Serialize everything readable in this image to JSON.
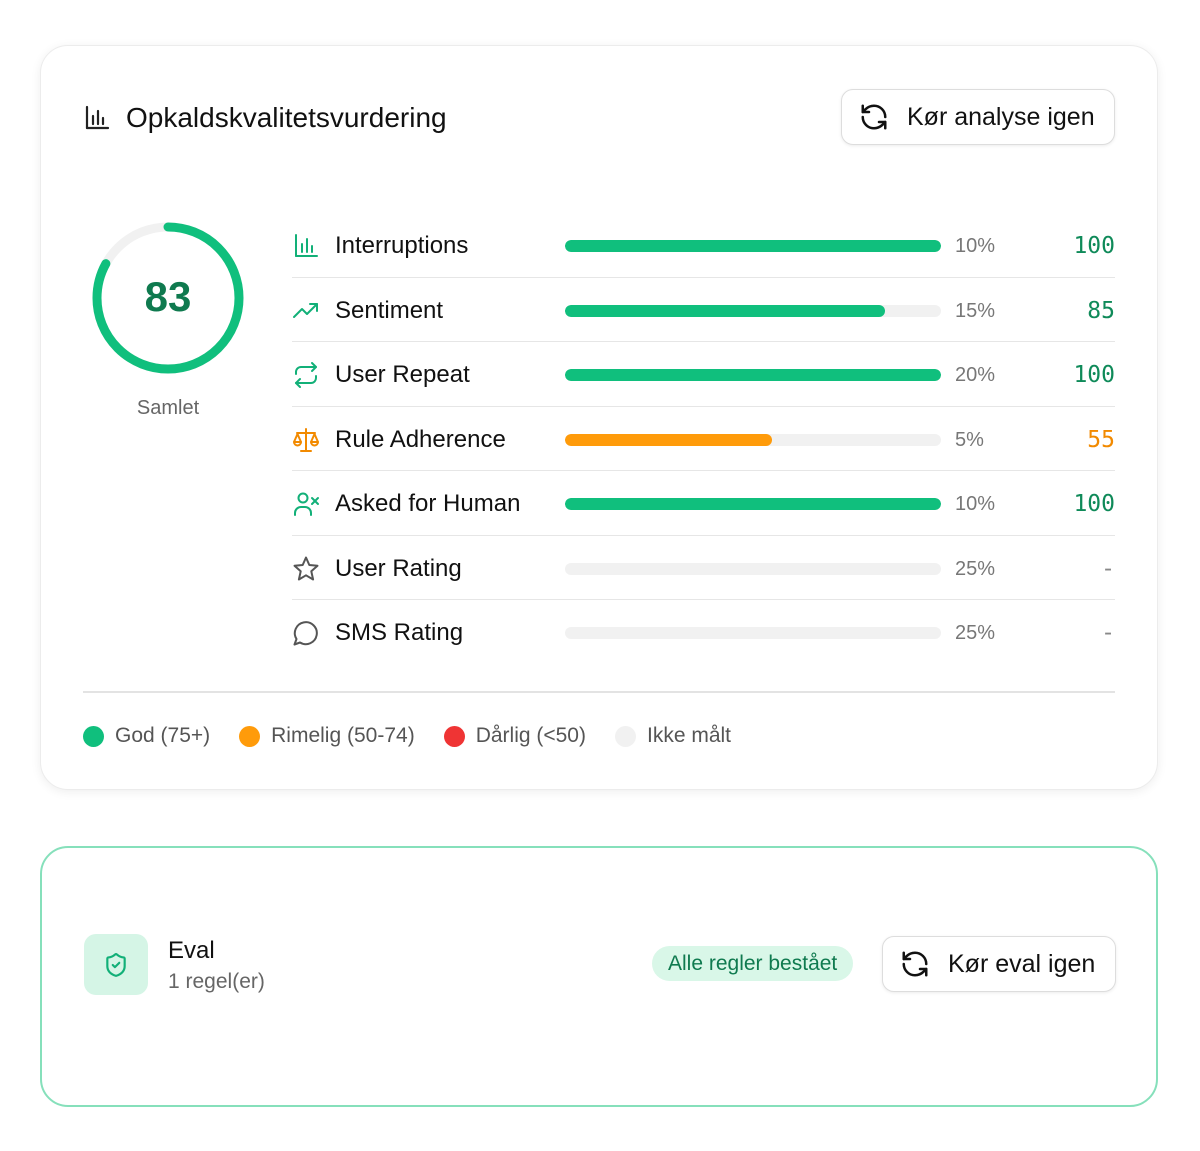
{
  "quality_card": {
    "title": "Opkaldskvalitetsvurdering",
    "title_icon": "bar-chart-icon",
    "rerun_button": {
      "label": "Kør analyse igen",
      "icon": "refresh-icon"
    },
    "overall": {
      "score": "83",
      "value": 83,
      "label": "Samlet"
    },
    "metrics": [
      {
        "name": "Interruptions",
        "icon": "bar-chart-icon",
        "weight": "10%",
        "score": "100",
        "value": 100,
        "status": "good"
      },
      {
        "name": "Sentiment",
        "icon": "trending-up-icon",
        "weight": "15%",
        "score": "85",
        "value": 85,
        "status": "good"
      },
      {
        "name": "User Repeat",
        "icon": "repeat-icon",
        "weight": "20%",
        "score": "100",
        "value": 100,
        "status": "good"
      },
      {
        "name": "Rule Adherence",
        "icon": "scale-icon",
        "weight": "5%",
        "score": "55",
        "value": 55,
        "status": "fair"
      },
      {
        "name": "Asked for Human",
        "icon": "user-x-icon",
        "weight": "10%",
        "score": "100",
        "value": 100,
        "status": "good"
      },
      {
        "name": "User Rating",
        "icon": "star-icon",
        "weight": "25%",
        "score": "-",
        "value": 0,
        "status": "none"
      },
      {
        "name": "SMS Rating",
        "icon": "chat-bubble-icon",
        "weight": "25%",
        "score": "-",
        "value": 0,
        "status": "none"
      }
    ],
    "legend": [
      {
        "label": "God (75+)",
        "color": "#10bf7d"
      },
      {
        "label": "Rimelig (50-74)",
        "color": "#ff9b0a"
      },
      {
        "label": "Dårlig (<50)",
        "color": "#ef3434"
      },
      {
        "label": "Ikke målt",
        "color": "#f1f1f1"
      }
    ]
  },
  "eval_card": {
    "icon": "shield-check-icon",
    "title": "Eval",
    "subtitle": "1 regel(er)",
    "badge": "Alle regler bestået",
    "rerun_button": {
      "label": "Kør eval igen",
      "icon": "refresh-icon"
    }
  },
  "colors": {
    "good": "#10bf7d",
    "fair": "#ff9b0a",
    "poor": "#ef3434",
    "none": "#f1f1f1",
    "good_text": "#0f8a59",
    "fair_text": "#f28a00",
    "none_text": "#888888",
    "good_icon": "#12b078",
    "fair_icon": "#f28a00",
    "none_icon": "#555555"
  }
}
